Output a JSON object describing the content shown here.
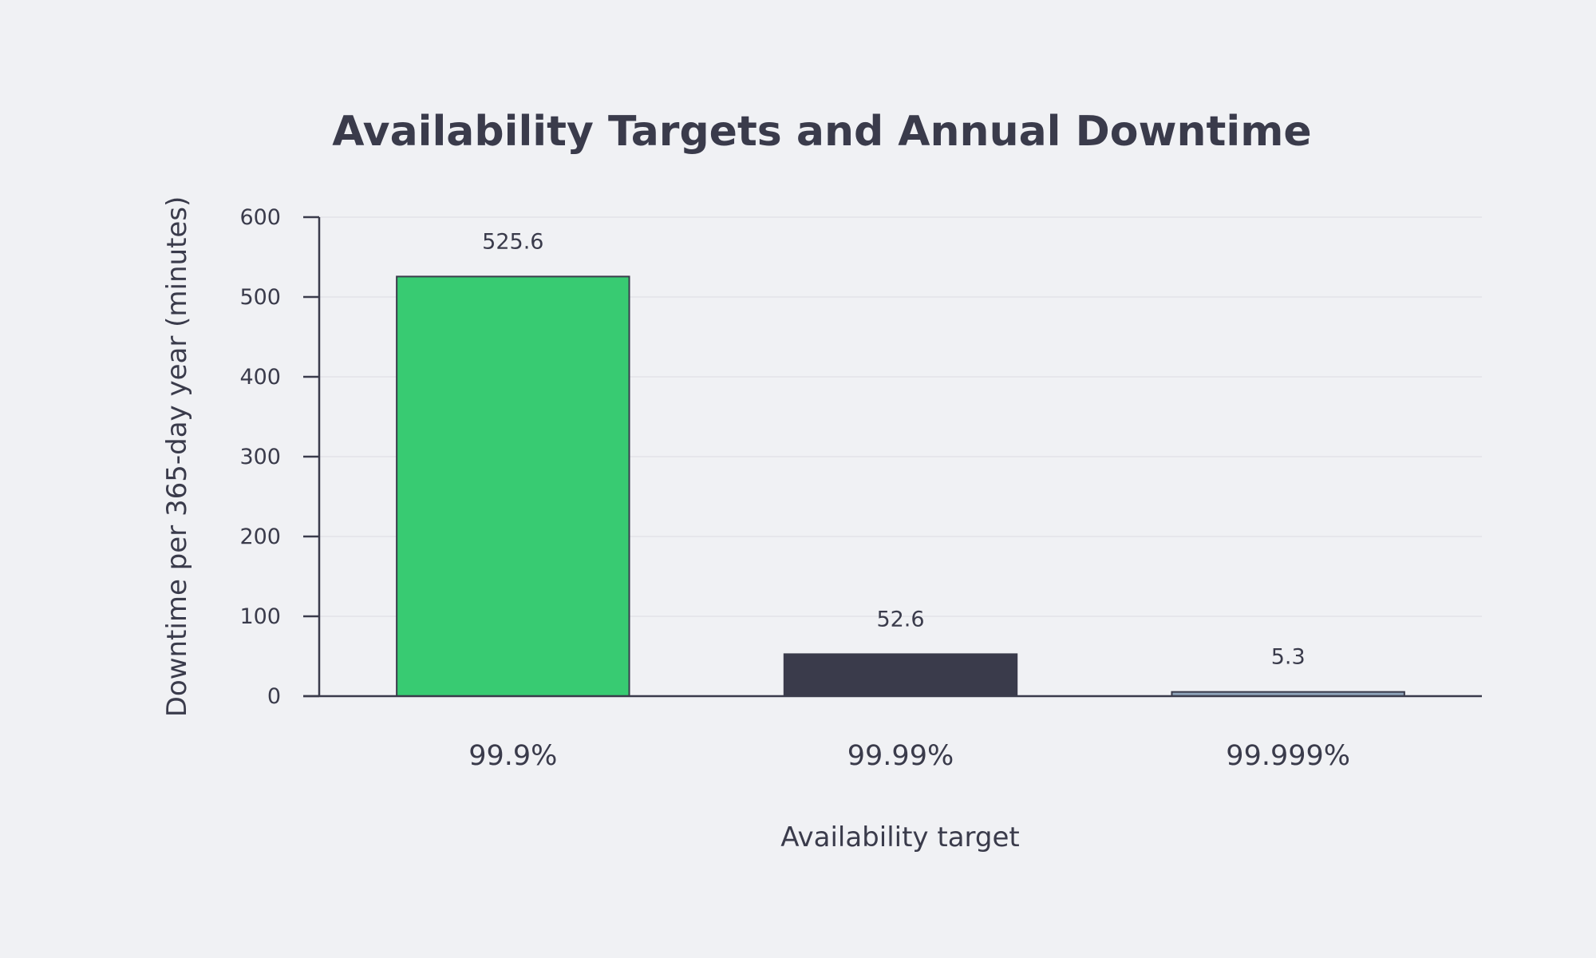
{
  "chart_data": {
    "type": "bar",
    "title": "Availability Targets and Annual Downtime",
    "xlabel": "Availability target",
    "ylabel": "Downtime per 365-day year (minutes)",
    "categories": [
      "99.9%",
      "99.99%",
      "99.999%"
    ],
    "values": [
      525.6,
      52.6,
      5.3
    ],
    "value_labels": [
      "525.6",
      "52.6",
      "5.3"
    ],
    "ylim": [
      0,
      600
    ],
    "yticks": [
      0,
      100,
      200,
      300,
      400,
      500,
      600
    ],
    "grid": true,
    "legend": "none",
    "colors": [
      "#38cb72",
      "#3a3b4b",
      "#8ea2b8"
    ]
  }
}
